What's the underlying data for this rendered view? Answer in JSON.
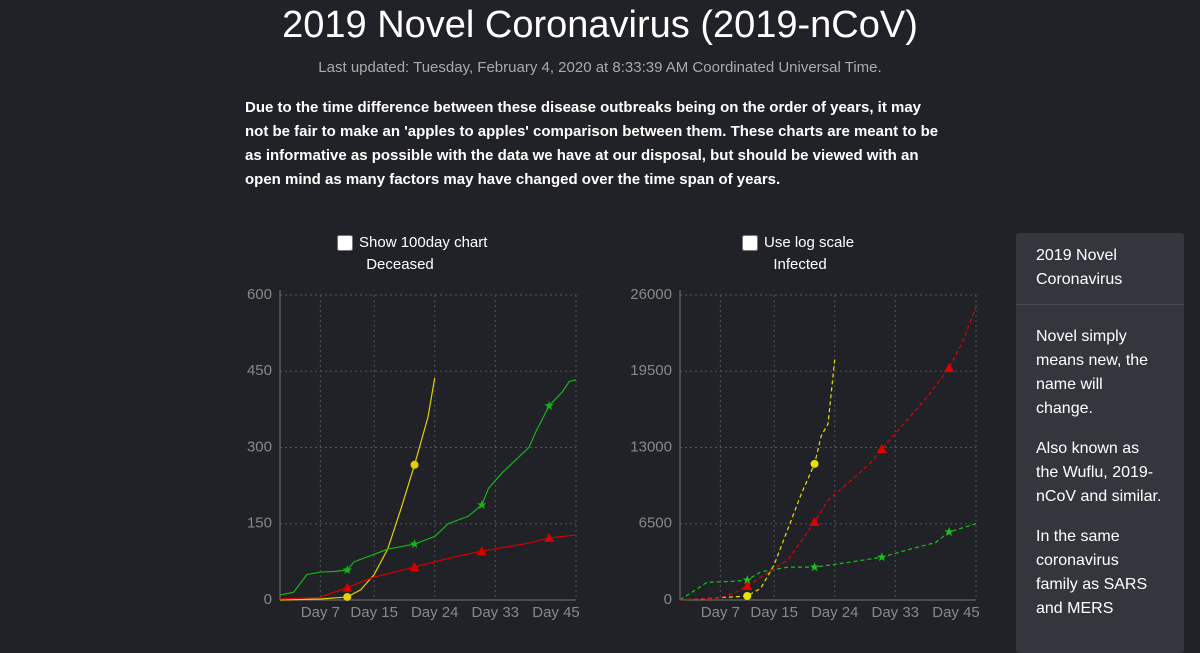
{
  "header": {
    "title": "2019 Novel Coronavirus (2019-nCoV)",
    "updated": "Last updated: Tuesday, February 4, 2020 at 8:33:39 AM Coordinated Universal Time."
  },
  "notice": "Due to the time difference between these disease outbreaks being on the order of years, it may not be fair to make an 'apples to apples' comparison between them. These charts are meant to be as informative as possible with the data we have at our disposal, but should be viewed with an open mind as many factors may have changed over the time span of years.",
  "controls": [
    "Show 100day chart",
    "Use log scale"
  ],
  "sidebar": {
    "title": "2019 Novel Coronavirus",
    "paragraphs": [
      "Novel simply means new, the name will change.",
      "Also known as the Wuflu, 2019-nCoV and similar.",
      "In the same coronavirus family as SARS and MERS"
    ]
  },
  "chart_data": [
    {
      "type": "line",
      "title": "Deceased",
      "dash": false,
      "grid": true,
      "xlim": [
        1,
        45
      ],
      "xticks": [
        {
          "value": 7,
          "label": "Day 7"
        },
        {
          "value": 15,
          "label": "Day 15"
        },
        {
          "value": 24,
          "label": "Day 24"
        },
        {
          "value": 33,
          "label": "Day 33"
        },
        {
          "value": 45,
          "label": "Day 45"
        }
      ],
      "ylim": [
        0,
        600
      ],
      "yticks": [
        0,
        150,
        300,
        450,
        600
      ],
      "series": [
        {
          "color": "#e2d000",
          "marker": "circle",
          "x": [
            1,
            4,
            7,
            11,
            13,
            15,
            17,
            19,
            21,
            23,
            24
          ],
          "values": [
            0,
            1,
            2,
            6,
            20,
            50,
            100,
            180,
            266,
            360,
            437
          ]
        },
        {
          "color": "#17b317",
          "marker": "star",
          "x": [
            1,
            3,
            5,
            7,
            9,
            11,
            12,
            14,
            17,
            21,
            23,
            24,
            26,
            29,
            31,
            32,
            34,
            36,
            38,
            39,
            41,
            43,
            44,
            45
          ],
          "values": [
            10,
            15,
            50,
            55,
            56,
            59,
            75,
            85,
            100,
            110,
            120,
            125,
            150,
            165,
            187,
            220,
            250,
            275,
            300,
            330,
            382,
            410,
            430,
            433
          ]
        },
        {
          "color": "#d40000",
          "marker": "triangle",
          "x": [
            1,
            7,
            9,
            11,
            13,
            15,
            18,
            21,
            24,
            27,
            31,
            35,
            38,
            41,
            45
          ],
          "values": [
            2,
            5,
            15,
            24,
            35,
            45,
            55,
            65,
            75,
            85,
            96,
            105,
            112,
            122,
            128
          ]
        }
      ]
    },
    {
      "type": "line",
      "title": "Infected",
      "dash": true,
      "grid": true,
      "xlim": [
        1,
        45
      ],
      "xticks": [
        {
          "value": 7,
          "label": "Day 7"
        },
        {
          "value": 15,
          "label": "Day 15"
        },
        {
          "value": 24,
          "label": "Day 24"
        },
        {
          "value": 33,
          "label": "Day 33"
        },
        {
          "value": 45,
          "label": "Day 45"
        }
      ],
      "ylim": [
        0,
        26000
      ],
      "yticks": [
        0,
        6500,
        13000,
        19500,
        26000
      ],
      "series": [
        {
          "color": "#e8e000",
          "marker": "circle",
          "x": [
            1,
            10,
            11,
            13,
            15,
            17,
            19,
            21,
            22,
            23,
            24
          ],
          "values": [
            0,
            300,
            340,
            1000,
            3000,
            6000,
            9000,
            11600,
            14000,
            15000,
            20500
          ]
        },
        {
          "color": "#17c317",
          "marker": "star",
          "x": [
            1,
            5,
            9,
            11,
            13,
            17,
            21,
            26,
            31,
            35,
            39,
            41,
            45
          ],
          "values": [
            0,
            1500,
            1600,
            1700,
            2400,
            2800,
            2800,
            3200,
            3650,
            4300,
            4900,
            5800,
            6500
          ]
        },
        {
          "color": "#e00000",
          "marker": "triangle",
          "x": [
            1,
            7,
            9,
            11,
            14,
            17,
            19,
            21,
            23,
            26,
            29,
            31,
            35,
            38,
            41,
            43,
            45
          ],
          "values": [
            0,
            200,
            600,
            1200,
            2300,
            3400,
            5000,
            6650,
            8500,
            10000,
            11500,
            12870,
            15500,
            17500,
            19780,
            22000,
            25000
          ]
        }
      ]
    }
  ]
}
